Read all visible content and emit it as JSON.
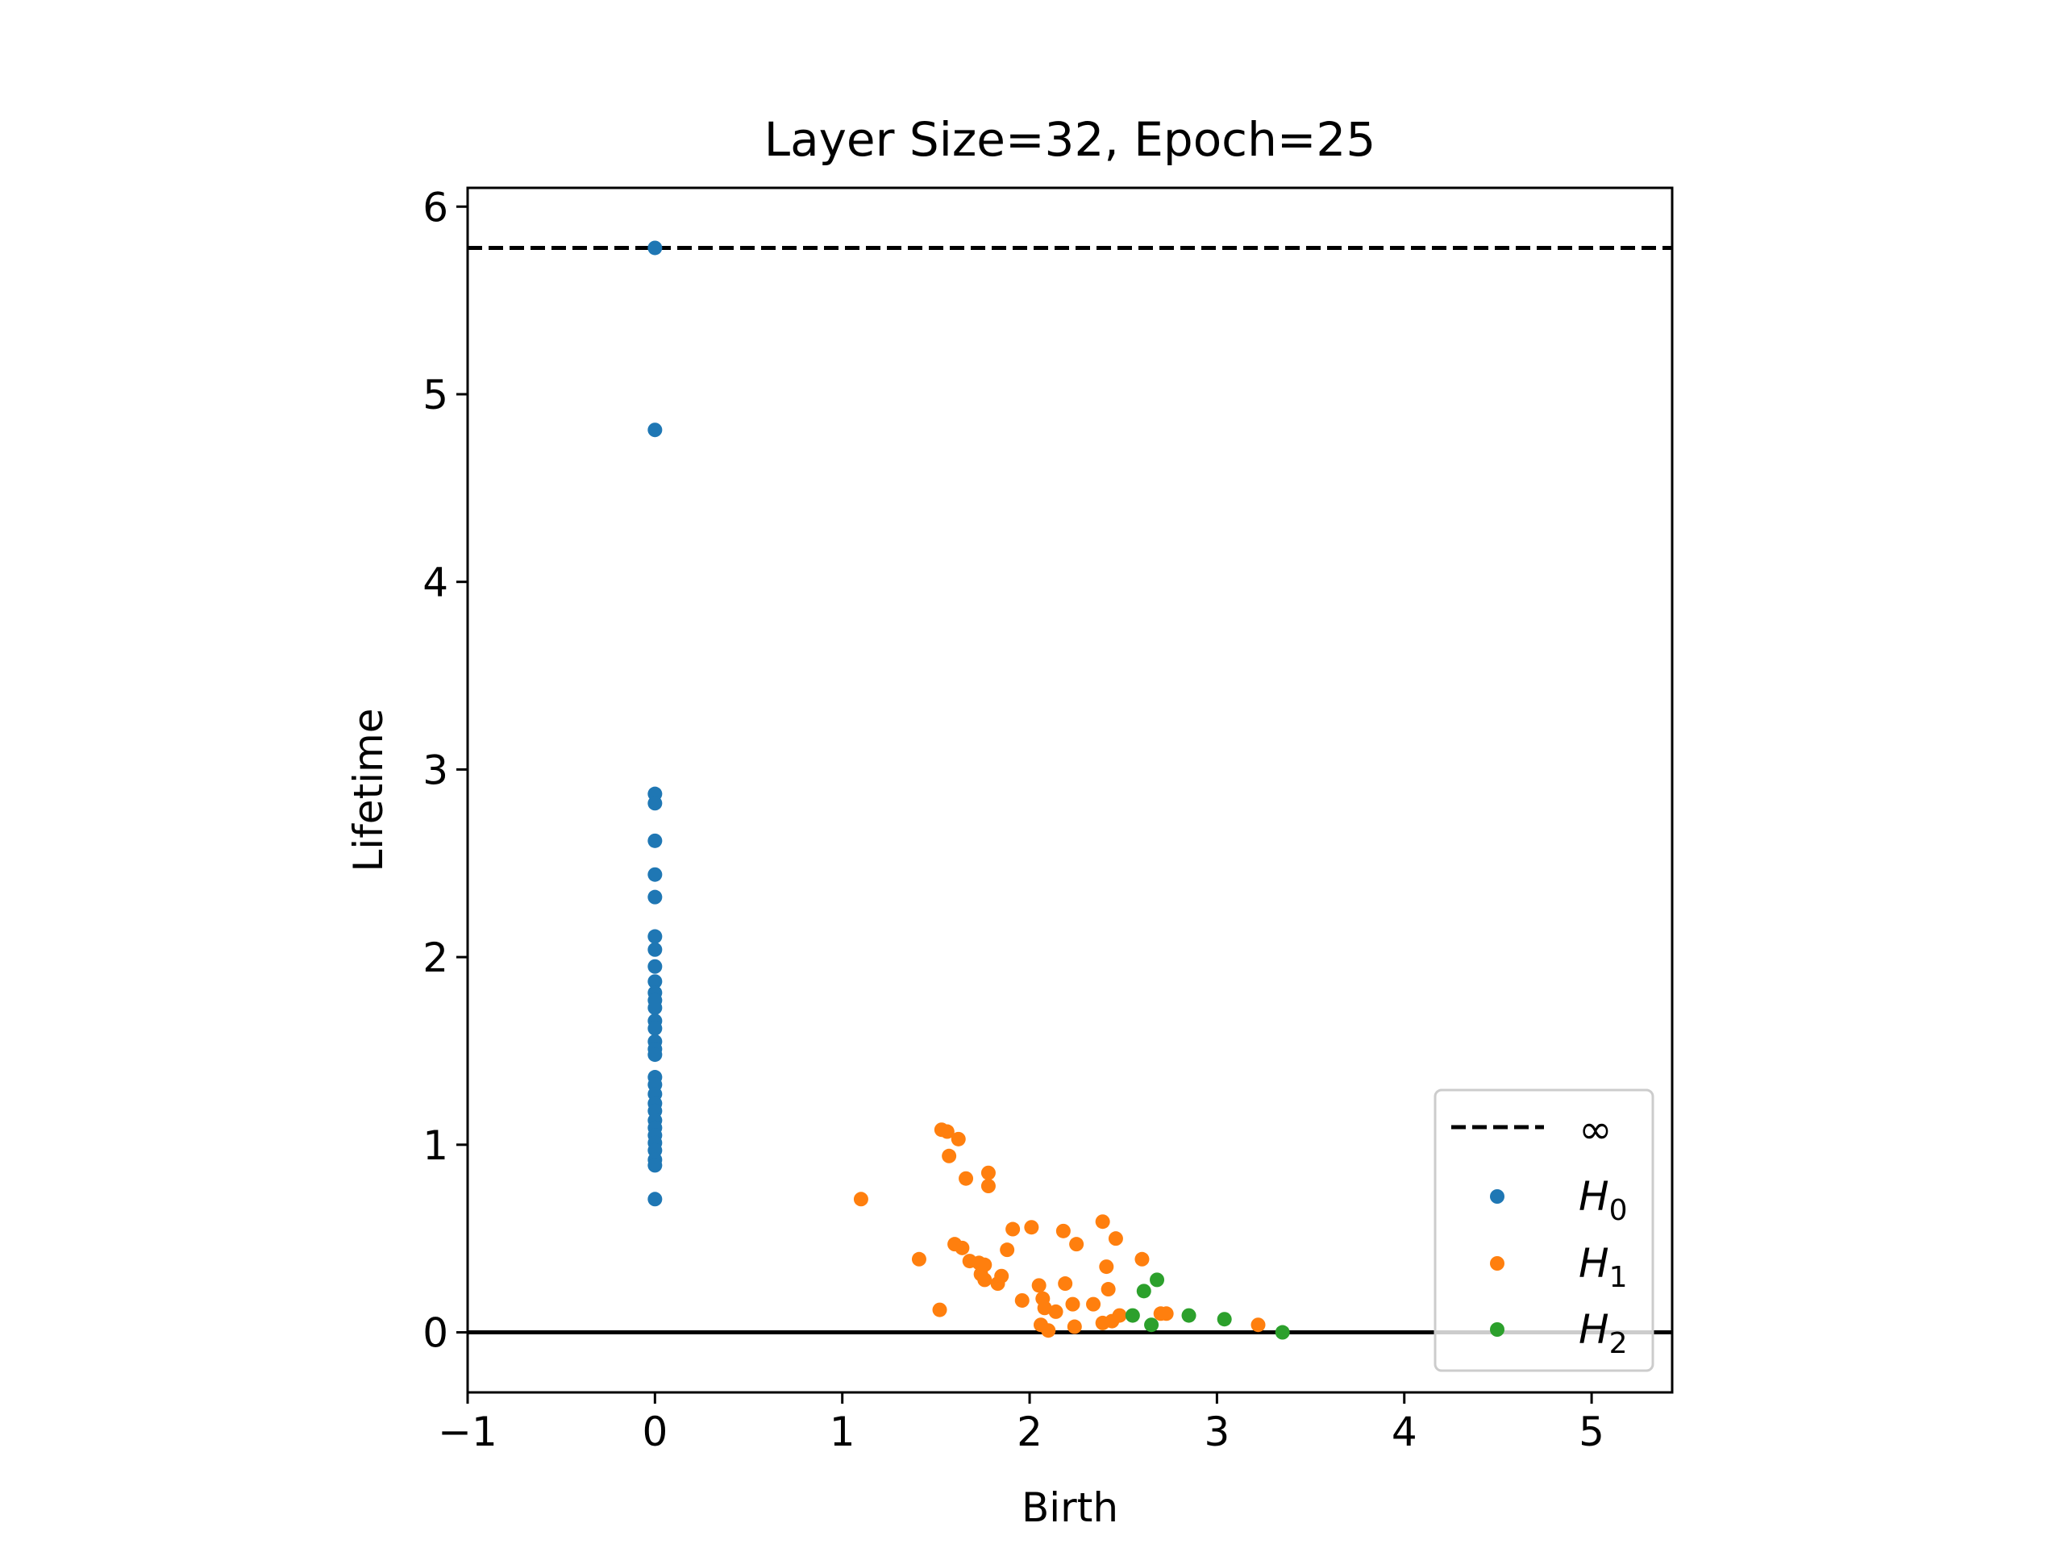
{
  "chart_data": {
    "type": "scatter",
    "title": "Layer Size=32, Epoch=25",
    "xlabel": "Birth",
    "ylabel": "Lifetime",
    "xlim": [
      -1,
      5.43
    ],
    "ylim": [
      -0.32,
      6.1
    ],
    "x_ticks": [
      -1,
      0,
      1,
      2,
      3,
      4,
      5
    ],
    "x_tick_labels": [
      "−1",
      "0",
      "1",
      "2",
      "3",
      "4",
      "5"
    ],
    "y_ticks": [
      0,
      1,
      2,
      3,
      4,
      5,
      6
    ],
    "y_tick_labels": [
      "0",
      "1",
      "2",
      "3",
      "4",
      "5",
      "6"
    ],
    "grid": false,
    "legend_position": "bottom-right",
    "infinity_line": {
      "y": 5.78,
      "label": "∞",
      "color": "#000000",
      "style": "dashed"
    },
    "zero_line": {
      "y": 0,
      "color": "#000000",
      "style": "solid"
    },
    "series": [
      {
        "name": "H",
        "subscript": "0",
        "color": "#1f77b4",
        "points": [
          [
            0,
            5.78
          ],
          [
            0,
            4.81
          ],
          [
            0,
            2.87
          ],
          [
            0,
            2.82
          ],
          [
            0,
            2.62
          ],
          [
            0,
            2.44
          ],
          [
            0,
            2.32
          ],
          [
            0,
            2.11
          ],
          [
            0,
            2.04
          ],
          [
            0,
            1.95
          ],
          [
            0,
            1.87
          ],
          [
            0,
            1.81
          ],
          [
            0,
            1.77
          ],
          [
            0,
            1.73
          ],
          [
            0,
            1.66
          ],
          [
            0,
            1.62
          ],
          [
            0,
            1.55
          ],
          [
            0,
            1.51
          ],
          [
            0,
            1.48
          ],
          [
            0,
            1.36
          ],
          [
            0,
            1.32
          ],
          [
            0,
            1.27
          ],
          [
            0,
            1.22
          ],
          [
            0,
            1.18
          ],
          [
            0,
            1.13
          ],
          [
            0,
            1.09
          ],
          [
            0,
            1.05
          ],
          [
            0,
            1.01
          ],
          [
            0,
            0.97
          ],
          [
            0,
            0.92
          ],
          [
            0,
            0.89
          ],
          [
            0,
            0.71
          ]
        ]
      },
      {
        "name": "H",
        "subscript": "1",
        "color": "#ff7f0e",
        "points": [
          [
            1.1,
            0.71
          ],
          [
            1.41,
            0.39
          ],
          [
            1.52,
            0.12
          ],
          [
            1.53,
            1.08
          ],
          [
            1.56,
            1.07
          ],
          [
            1.57,
            0.94
          ],
          [
            1.62,
            1.03
          ],
          [
            1.6,
            0.47
          ],
          [
            1.64,
            0.45
          ],
          [
            1.66,
            0.82
          ],
          [
            1.68,
            0.38
          ],
          [
            1.73,
            0.37
          ],
          [
            1.74,
            0.31
          ],
          [
            1.76,
            0.36
          ],
          [
            1.76,
            0.28
          ],
          [
            1.78,
            0.85
          ],
          [
            1.78,
            0.78
          ],
          [
            1.83,
            0.26
          ],
          [
            1.85,
            0.3
          ],
          [
            1.88,
            0.44
          ],
          [
            1.91,
            0.55
          ],
          [
            1.96,
            0.17
          ],
          [
            2.01,
            0.56
          ],
          [
            2.05,
            0.25
          ],
          [
            2.06,
            0.04
          ],
          [
            2.07,
            0.18
          ],
          [
            2.08,
            0.13
          ],
          [
            2.1,
            0.01
          ],
          [
            2.14,
            0.11
          ],
          [
            2.18,
            0.54
          ],
          [
            2.19,
            0.26
          ],
          [
            2.23,
            0.15
          ],
          [
            2.24,
            0.03
          ],
          [
            2.25,
            0.47
          ],
          [
            2.34,
            0.15
          ],
          [
            2.39,
            0.59
          ],
          [
            2.39,
            0.05
          ],
          [
            2.41,
            0.35
          ],
          [
            2.42,
            0.23
          ],
          [
            2.44,
            0.06
          ],
          [
            2.46,
            0.5
          ],
          [
            2.48,
            0.09
          ],
          [
            2.6,
            0.39
          ],
          [
            2.7,
            0.1
          ],
          [
            2.73,
            0.1
          ],
          [
            3.22,
            0.04
          ]
        ]
      },
      {
        "name": "H",
        "subscript": "2",
        "color": "#2ca02c",
        "points": [
          [
            2.55,
            0.09
          ],
          [
            2.61,
            0.22
          ],
          [
            2.65,
            0.04
          ],
          [
            2.68,
            0.28
          ],
          [
            2.85,
            0.09
          ],
          [
            3.04,
            0.07
          ],
          [
            3.35,
            0.0
          ]
        ]
      }
    ]
  }
}
